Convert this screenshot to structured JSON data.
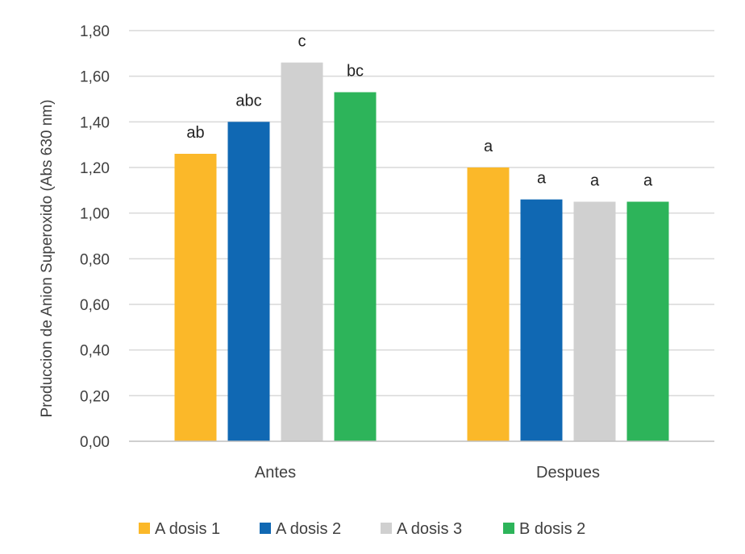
{
  "chart_data": {
    "type": "bar",
    "title": "",
    "xlabel": "",
    "ylabel": "Produccion de Anion Superoxido (Abs 630 nm)",
    "ylim": [
      0,
      1.8
    ],
    "ytick_step": 0.2,
    "ytick_labels": [
      "0,00",
      "0,20",
      "0,40",
      "0,60",
      "0,80",
      "1,00",
      "1,20",
      "1,40",
      "1,60",
      "1,80"
    ],
    "grid": true,
    "legend_position": "bottom",
    "categories": [
      "Antes",
      "Despues"
    ],
    "series": [
      {
        "name": "A dosis 1",
        "color": "#FBB829",
        "values": [
          1.26,
          1.2
        ],
        "labels": [
          "ab",
          "a"
        ]
      },
      {
        "name": "A dosis 2",
        "color": "#1068B3",
        "values": [
          1.4,
          1.06
        ],
        "labels": [
          "abc",
          "a"
        ]
      },
      {
        "name": "A dosis 3",
        "color": "#D0D0D0",
        "values": [
          1.66,
          1.05
        ],
        "labels": [
          "c",
          "a"
        ]
      },
      {
        "name": "B dosis 2",
        "color": "#2DB45A",
        "values": [
          1.53,
          1.05
        ],
        "labels": [
          "bc",
          "a"
        ]
      }
    ]
  }
}
